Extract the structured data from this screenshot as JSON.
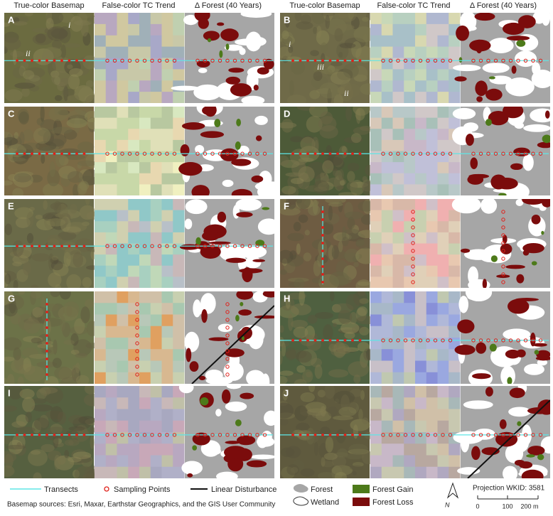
{
  "column_headers": [
    "True-color Basemap",
    "False-color TC Trend",
    "Δ Forest (40 Years)",
    "True-color Basemap",
    "False-color TC Trend",
    "Δ Forest (40 Years)"
  ],
  "panels": [
    {
      "label": "A",
      "annotations": [
        "i",
        "ii"
      ]
    },
    {
      "label": "B",
      "annotations": [
        "i",
        "iii",
        "ii"
      ]
    },
    {
      "label": "C"
    },
    {
      "label": "D"
    },
    {
      "label": "E"
    },
    {
      "label": "F"
    },
    {
      "label": "G"
    },
    {
      "label": "H"
    },
    {
      "label": "I"
    },
    {
      "label": "J"
    }
  ],
  "legend": {
    "transects": "Transects",
    "sampling_points": "Sampling Points",
    "linear_disturbance": "Linear Disturbance",
    "forest": "Forest",
    "wetland": "Wetland",
    "forest_gain": "Forest Gain",
    "forest_loss": "Forest Loss"
  },
  "north": "N",
  "projection": "Projection WKID: 3581",
  "scale_bar": [
    "0",
    "100",
    "200 m"
  ],
  "source": "Basemap sources: Esri, Maxar, Earthstar Geographics, and the GIS User Community"
}
